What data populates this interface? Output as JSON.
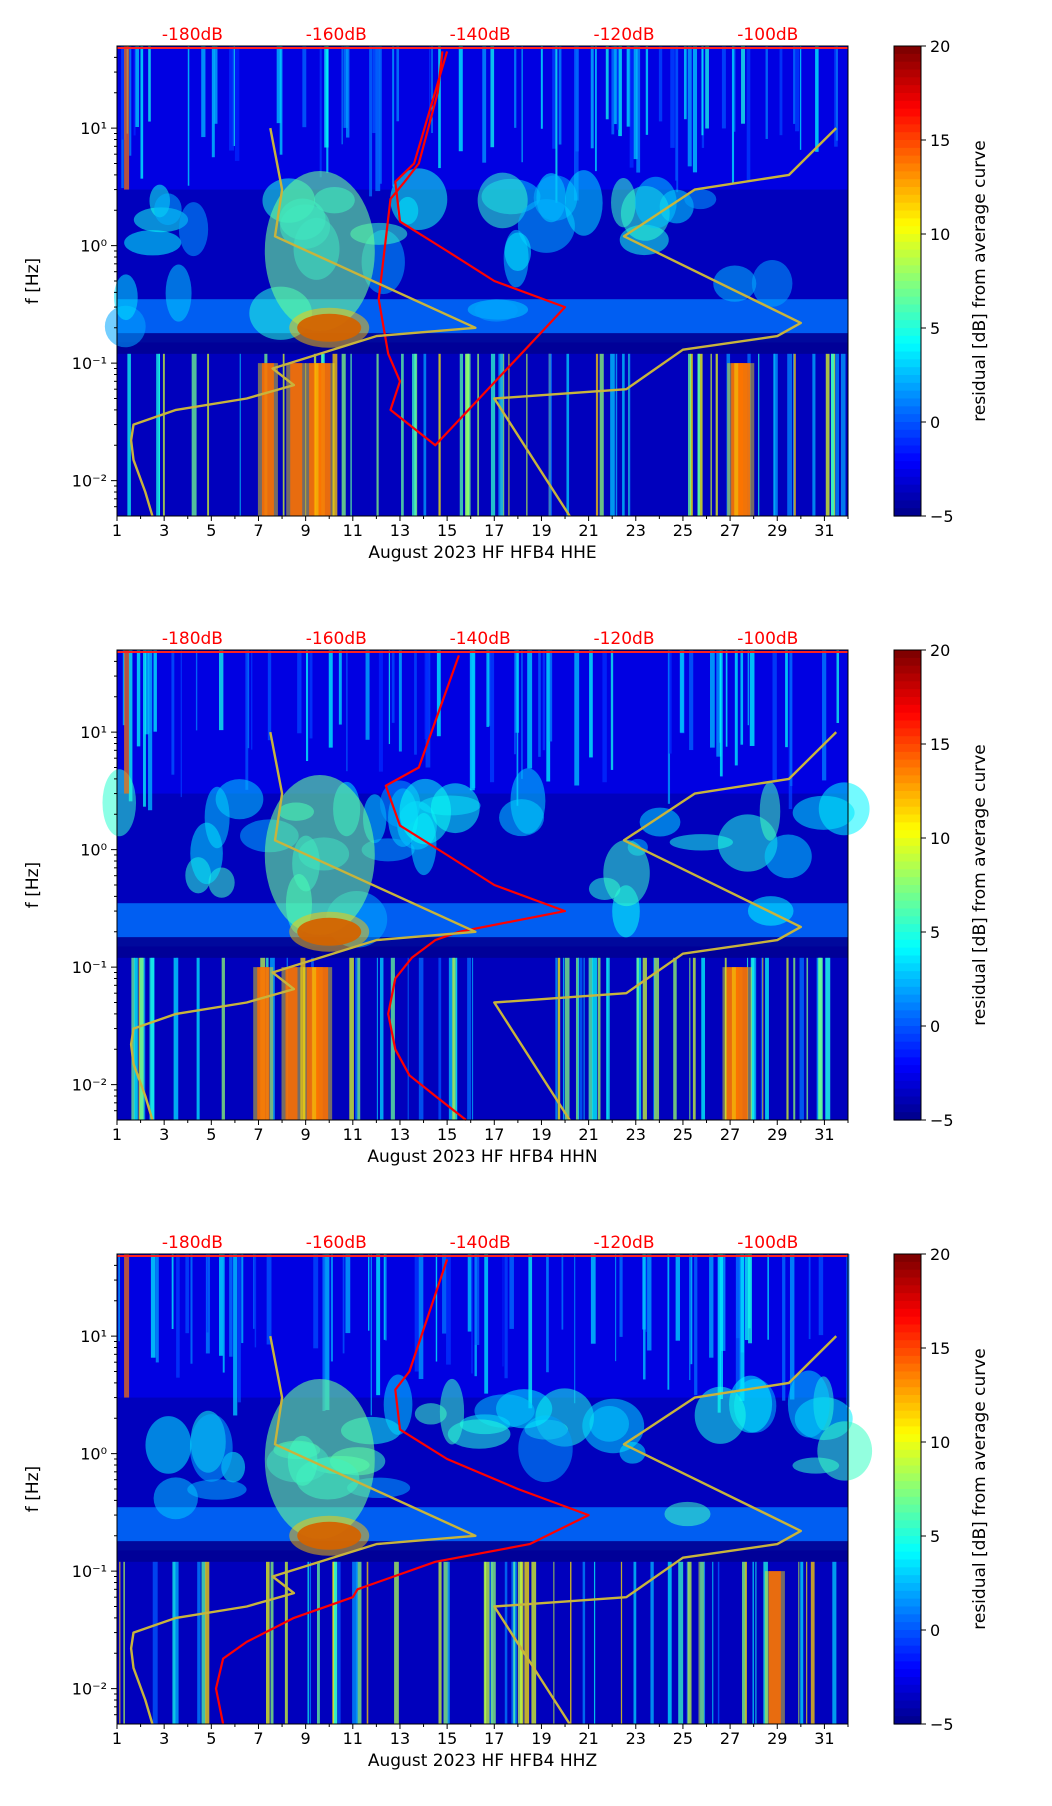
{
  "colors": {
    "db_label": "#ff0000",
    "noise_model": "#c8b43c",
    "mean_psd": "#ff0000",
    "axis": "#000000"
  },
  "chart_data": [
    {
      "type": "heatmap",
      "channel": "HHE",
      "xlabel": "August 2023 HF HFB4  HHE",
      "ylabel": "f [Hz]",
      "x_ticks": [
        "1",
        "3",
        "5",
        "7",
        "9",
        "11",
        "13",
        "15",
        "17",
        "19",
        "21",
        "23",
        "25",
        "27",
        "29",
        "31"
      ],
      "xlim": [
        1,
        32
      ],
      "y_scale": "log",
      "ylim": [
        0.005,
        50
      ],
      "y_tick_labels": [
        "10⁻²",
        "10⁻¹",
        "10⁰",
        "10¹"
      ],
      "y_tick_values": [
        0.01,
        0.1,
        1,
        10
      ],
      "top_axis_labels": [
        "-180dB",
        "-160dB",
        "-140dB",
        "-120dB",
        "-100dB"
      ],
      "top_axis_day_positions": [
        4.2,
        10.3,
        16.4,
        22.5,
        28.6
      ],
      "colorbar": {
        "label": "residual [dB] from average curve",
        "min": -5,
        "max": 20,
        "ticks": [
          "20",
          "15",
          "10",
          "5",
          "0",
          "−5"
        ],
        "tick_values": [
          20,
          15,
          10,
          5,
          0,
          -5
        ]
      },
      "hot_days": [
        7.4,
        8.6,
        9.4,
        9.8,
        27.3,
        27.6
      ],
      "series": [
        {
          "name": "mean PSD",
          "color": "#ff0000",
          "x": [
            14.8,
            14.6,
            14.2,
            13.8,
            13.2,
            12.6,
            12.1,
            12.5,
            13.0,
            12.6,
            14.5,
            20.0,
            17.0,
            15.0,
            13.0,
            12.8,
            13.6,
            15.0
          ],
          "y": [
            45,
            20,
            10,
            5,
            3.5,
            2.5,
            0.35,
            0.12,
            0.07,
            0.04,
            0.02,
            0.3,
            0.5,
            0.9,
            1.6,
            3.5,
            5,
            45
          ]
        },
        {
          "name": "NLNM",
          "color": "#c8b43c",
          "x": [
            2.5,
            2.2,
            1.7,
            1.6,
            1.7,
            3.5,
            6.5,
            8.5,
            7.6,
            12.0,
            16.2,
            7.7,
            8.0,
            7.5
          ],
          "y": [
            0.005,
            0.008,
            0.015,
            0.022,
            0.03,
            0.04,
            0.05,
            0.065,
            0.09,
            0.17,
            0.2,
            1.2,
            3.0,
            10
          ]
        },
        {
          "name": "NHNM",
          "color": "#c8b43c",
          "x": [
            20.2,
            17.0,
            22.6,
            25.0,
            29.0,
            30.0,
            22.5,
            25.5,
            29.5,
            31.5
          ],
          "y": [
            0.005,
            0.05,
            0.06,
            0.13,
            0.17,
            0.22,
            1.2,
            3.0,
            4.0,
            10
          ]
        }
      ]
    },
    {
      "type": "heatmap",
      "channel": "HHN",
      "xlabel": "August 2023 HF HFB4  HHN",
      "ylabel": "f [Hz]",
      "x_ticks": [
        "1",
        "3",
        "5",
        "7",
        "9",
        "11",
        "13",
        "15",
        "17",
        "19",
        "21",
        "23",
        "25",
        "27",
        "29",
        "31"
      ],
      "xlim": [
        1,
        32
      ],
      "y_scale": "log",
      "ylim": [
        0.005,
        50
      ],
      "y_tick_labels": [
        "10⁻²",
        "10⁻¹",
        "10⁰",
        "10¹"
      ],
      "y_tick_values": [
        0.01,
        0.1,
        1,
        10
      ],
      "top_axis_labels": [
        "-180dB",
        "-160dB",
        "-140dB",
        "-120dB",
        "-100dB"
      ],
      "top_axis_day_positions": [
        4.2,
        10.3,
        16.4,
        22.5,
        28.6
      ],
      "colorbar": {
        "label": "residual [dB] from average curve",
        "min": -5,
        "max": 20,
        "ticks": [
          "20",
          "15",
          "10",
          "5",
          "0",
          "−5"
        ],
        "tick_values": [
          20,
          15,
          10,
          5,
          0,
          -5
        ]
      },
      "hot_days": [
        7.2,
        8.4,
        9.3,
        9.7,
        27.1,
        27.5
      ],
      "series": [
        {
          "name": "mean PSD",
          "color": "#ff0000",
          "x": [
            15.8,
            14.5,
            13.4,
            12.8,
            12.5,
            12.8,
            13.5,
            14.5,
            15.5,
            20.0,
            17.0,
            15.0,
            13.0,
            12.4,
            13.8,
            15.5
          ],
          "y": [
            0.005,
            0.008,
            0.012,
            0.02,
            0.04,
            0.08,
            0.12,
            0.17,
            0.2,
            0.3,
            0.5,
            0.9,
            1.6,
            3.5,
            5,
            45
          ]
        },
        {
          "name": "NLNM",
          "color": "#c8b43c",
          "x": [
            2.5,
            2.2,
            1.7,
            1.6,
            1.7,
            3.5,
            6.5,
            8.5,
            7.6,
            12.0,
            16.2,
            7.7,
            8.0,
            7.5
          ],
          "y": [
            0.005,
            0.008,
            0.015,
            0.022,
            0.03,
            0.04,
            0.05,
            0.065,
            0.09,
            0.17,
            0.2,
            1.2,
            3.0,
            10
          ]
        },
        {
          "name": "NHNM",
          "color": "#c8b43c",
          "x": [
            20.2,
            17.0,
            22.6,
            25.0,
            29.0,
            30.0,
            22.5,
            25.5,
            29.5,
            31.5
          ],
          "y": [
            0.005,
            0.05,
            0.06,
            0.13,
            0.17,
            0.22,
            1.2,
            3.0,
            4.0,
            10
          ]
        }
      ]
    },
    {
      "type": "heatmap",
      "channel": "HHZ",
      "xlabel": "August 2023 HF HFB4  HHZ",
      "ylabel": "f [Hz]",
      "x_ticks": [
        "1",
        "3",
        "5",
        "7",
        "9",
        "11",
        "13",
        "15",
        "17",
        "19",
        "21",
        "23",
        "25",
        "27",
        "29",
        "31"
      ],
      "xlim": [
        1,
        32
      ],
      "y_scale": "log",
      "ylim": [
        0.005,
        50
      ],
      "y_tick_labels": [
        "10⁻²",
        "10⁻¹",
        "10⁰",
        "10¹"
      ],
      "y_tick_values": [
        0.01,
        0.1,
        1,
        10
      ],
      "top_axis_labels": [
        "-180dB",
        "-160dB",
        "-140dB",
        "-120dB",
        "-100dB"
      ],
      "top_axis_day_positions": [
        4.2,
        10.3,
        16.4,
        22.5,
        28.6
      ],
      "colorbar": {
        "label": "residual [dB] from average curve",
        "min": -5,
        "max": 20,
        "ticks": [
          "20",
          "15",
          "10",
          "5",
          "0",
          "−5"
        ],
        "tick_values": [
          20,
          15,
          10,
          5,
          0,
          -5
        ]
      },
      "hot_days": [
        28.9
      ],
      "series": [
        {
          "name": "mean PSD",
          "color": "#ff0000",
          "x": [
            5.5,
            5.2,
            5.5,
            6.5,
            8.5,
            11.0,
            11.2,
            14.5,
            18.5,
            21.0,
            18.0,
            15.0,
            13.0,
            12.8,
            13.4,
            15.0
          ],
          "y": [
            0.005,
            0.01,
            0.018,
            0.025,
            0.04,
            0.06,
            0.07,
            0.12,
            0.17,
            0.3,
            0.5,
            0.9,
            1.6,
            3.5,
            5,
            45
          ]
        },
        {
          "name": "NLNM",
          "color": "#c8b43c",
          "x": [
            2.5,
            2.2,
            1.7,
            1.6,
            1.7,
            3.5,
            6.5,
            8.5,
            7.6,
            12.0,
            16.2,
            7.7,
            8.0,
            7.5
          ],
          "y": [
            0.005,
            0.008,
            0.015,
            0.022,
            0.03,
            0.04,
            0.05,
            0.065,
            0.09,
            0.17,
            0.2,
            1.2,
            3.0,
            10
          ]
        },
        {
          "name": "NHNM",
          "color": "#c8b43c",
          "x": [
            20.2,
            17.0,
            22.6,
            25.0,
            29.0,
            30.0,
            22.5,
            25.5,
            29.5,
            31.5
          ],
          "y": [
            0.005,
            0.05,
            0.06,
            0.13,
            0.17,
            0.22,
            1.2,
            3.0,
            4.0,
            10
          ]
        }
      ]
    }
  ]
}
